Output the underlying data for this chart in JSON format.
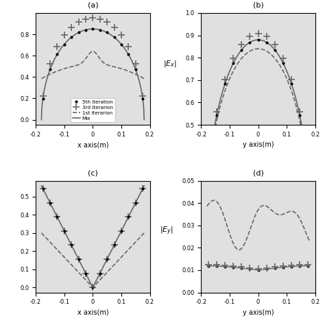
{
  "title_a": "(a)",
  "title_b": "(b)",
  "title_c": "(c)",
  "title_d": "(d)",
  "xlabel_ac": "x axis(m)",
  "xlabel_bd": "y axis(m)",
  "ylabel_b": "$|E_x|$",
  "ylabel_d": "$|E_y|$",
  "xlim": [
    -0.2,
    0.2
  ],
  "legend_labels": [
    "5th iteration",
    "3rd iterarion",
    "1st iterarion",
    "Mie"
  ],
  "gray": "#666666",
  "bg_color": "#e0e0e0"
}
